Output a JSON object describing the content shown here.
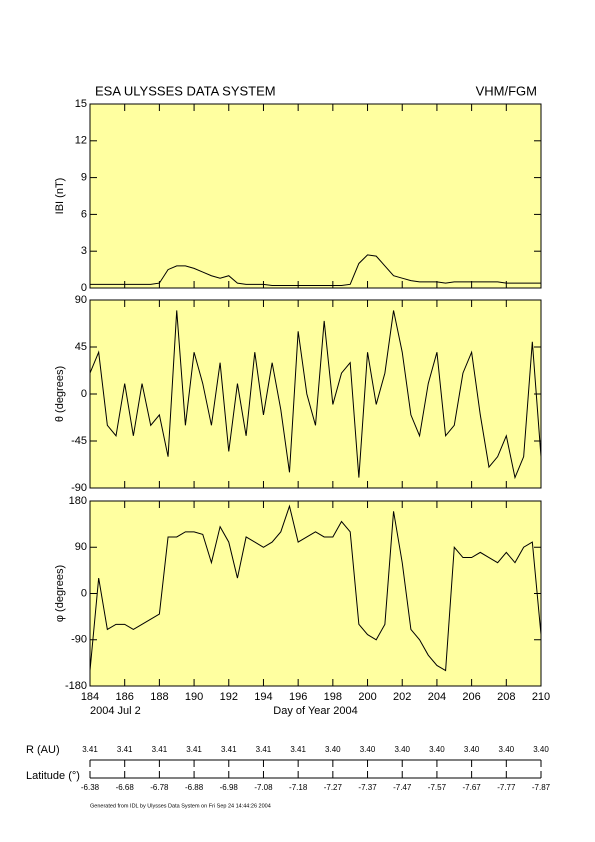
{
  "header": {
    "title": "ESA ULYSSES DATA SYSTEM",
    "instrument": "VHM/FGM"
  },
  "footer": {
    "date": "2004 Jul  2",
    "generated": "Generated from IDL by Ulysses Data System on Fri Sep 24 14:44:26 2004"
  },
  "orbit": {
    "r_label": "R (AU)",
    "r_values": [
      "3.41",
      "3.41",
      "3.41",
      "3.41",
      "3.41",
      "3.41",
      "3.41",
      "3.40",
      "3.40",
      "3.40",
      "3.40",
      "3.40",
      "3.40",
      "3.40"
    ],
    "lat_label": "Latitude (°)",
    "lat_values": [
      "-6.38",
      "-6.68",
      "-6.78",
      "-6.88",
      "-6.98",
      "-7.08",
      "-7.18",
      "-7.27",
      "-7.37",
      "-7.47",
      "-7.57",
      "-7.67",
      "-7.77",
      "-7.87"
    ]
  },
  "chart_data": [
    {
      "type": "line",
      "y_label": "IBI (nT)",
      "color": "#000000",
      "background": "#ffffa0",
      "xlim": [
        184,
        210
      ],
      "xticks": [
        184,
        186,
        188,
        190,
        192,
        194,
        196,
        198,
        200,
        202,
        204,
        206,
        208,
        210
      ],
      "ylim": [
        0,
        15
      ],
      "yticks": [
        0,
        3,
        6,
        9,
        12,
        15
      ],
      "x": [
        184,
        184.5,
        185,
        185.5,
        186,
        186.5,
        187,
        187.5,
        188,
        188.5,
        189,
        189.5,
        190,
        190.5,
        191,
        191.5,
        192,
        192.5,
        193,
        193.5,
        194,
        194.5,
        195,
        195.5,
        196,
        196.5,
        197,
        197.5,
        198,
        198.5,
        199,
        199.5,
        200,
        200.5,
        201,
        201.5,
        202,
        202.5,
        203,
        203.5,
        204,
        204.5,
        205,
        205.5,
        206,
        206.5,
        207,
        207.5,
        208,
        208.5,
        209,
        209.5,
        210
      ],
      "values": [
        0.3,
        0.3,
        0.3,
        0.3,
        0.3,
        0.3,
        0.3,
        0.3,
        0.4,
        1.5,
        1.8,
        1.8,
        1.6,
        1.3,
        1.0,
        0.8,
        1.0,
        0.4,
        0.3,
        0.3,
        0.3,
        0.2,
        0.2,
        0.2,
        0.2,
        0.2,
        0.2,
        0.2,
        0.2,
        0.2,
        0.3,
        2.0,
        2.7,
        2.6,
        1.8,
        1.0,
        0.8,
        0.6,
        0.5,
        0.5,
        0.5,
        0.4,
        0.5,
        0.5,
        0.5,
        0.5,
        0.5,
        0.5,
        0.4,
        0.4,
        0.4,
        0.4,
        0.4
      ]
    },
    {
      "type": "line",
      "y_label": "θ (degrees)",
      "color": "#000000",
      "background": "#ffffa0",
      "xlim": [
        184,
        210
      ],
      "xticks": [
        184,
        186,
        188,
        190,
        192,
        194,
        196,
        198,
        200,
        202,
        204,
        206,
        208,
        210
      ],
      "ylim": [
        -90,
        90
      ],
      "yticks": [
        -90,
        -45,
        0,
        45,
        90
      ],
      "x": [
        184,
        184.5,
        185,
        185.5,
        186,
        186.5,
        187,
        187.5,
        188,
        188.5,
        189,
        189.5,
        190,
        190.5,
        191,
        191.5,
        192,
        192.5,
        193,
        193.5,
        194,
        194.5,
        195,
        195.5,
        196,
        196.5,
        197,
        197.5,
        198,
        198.5,
        199,
        199.5,
        200,
        200.5,
        201,
        201.5,
        202,
        202.5,
        203,
        203.5,
        204,
        204.5,
        205,
        205.5,
        206,
        206.5,
        207,
        207.5,
        208,
        208.5,
        209,
        209.5,
        210
      ],
      "values": [
        20,
        40,
        -30,
        -40,
        10,
        -40,
        10,
        -30,
        -20,
        -60,
        80,
        -30,
        40,
        10,
        -30,
        30,
        -55,
        10,
        -40,
        40,
        -20,
        30,
        -15,
        -75,
        60,
        0,
        -30,
        70,
        -10,
        20,
        30,
        -80,
        40,
        -10,
        20,
        80,
        40,
        -20,
        -40,
        10,
        40,
        -40,
        -30,
        20,
        40,
        -20,
        -70,
        -60,
        -40,
        -80,
        -60,
        50,
        -60
      ]
    },
    {
      "type": "line",
      "y_label": "φ (degrees)",
      "x_label": "Day of Year 2004",
      "color": "#000000",
      "background": "#ffffa0",
      "xlim": [
        184,
        210
      ],
      "xticks": [
        184,
        186,
        188,
        190,
        192,
        194,
        196,
        198,
        200,
        202,
        204,
        206,
        208,
        210
      ],
      "ylim": [
        -180,
        180
      ],
      "yticks": [
        -180,
        -90,
        0,
        90,
        180
      ],
      "x": [
        184,
        184.5,
        185,
        185.5,
        186,
        186.5,
        187,
        187.5,
        188,
        188.5,
        189,
        189.5,
        190,
        190.5,
        191,
        191.5,
        192,
        192.5,
        193,
        193.5,
        194,
        194.5,
        195,
        195.5,
        196,
        196.5,
        197,
        197.5,
        198,
        198.5,
        199,
        199.5,
        200,
        200.5,
        201,
        201.5,
        202,
        202.5,
        203,
        203.5,
        204,
        204.5,
        205,
        205.5,
        206,
        206.5,
        207,
        207.5,
        208,
        208.5,
        209,
        209.5,
        210
      ],
      "values": [
        -150,
        30,
        -70,
        -60,
        -60,
        -70,
        -60,
        -50,
        -40,
        110,
        110,
        120,
        120,
        115,
        60,
        130,
        100,
        30,
        110,
        100,
        90,
        100,
        120,
        170,
        100,
        110,
        120,
        110,
        110,
        140,
        120,
        -60,
        -80,
        -90,
        -60,
        160,
        60,
        -70,
        -90,
        -120,
        -140,
        -150,
        90,
        70,
        70,
        80,
        70,
        60,
        80,
        60,
        90,
        100,
        -80
      ]
    }
  ]
}
